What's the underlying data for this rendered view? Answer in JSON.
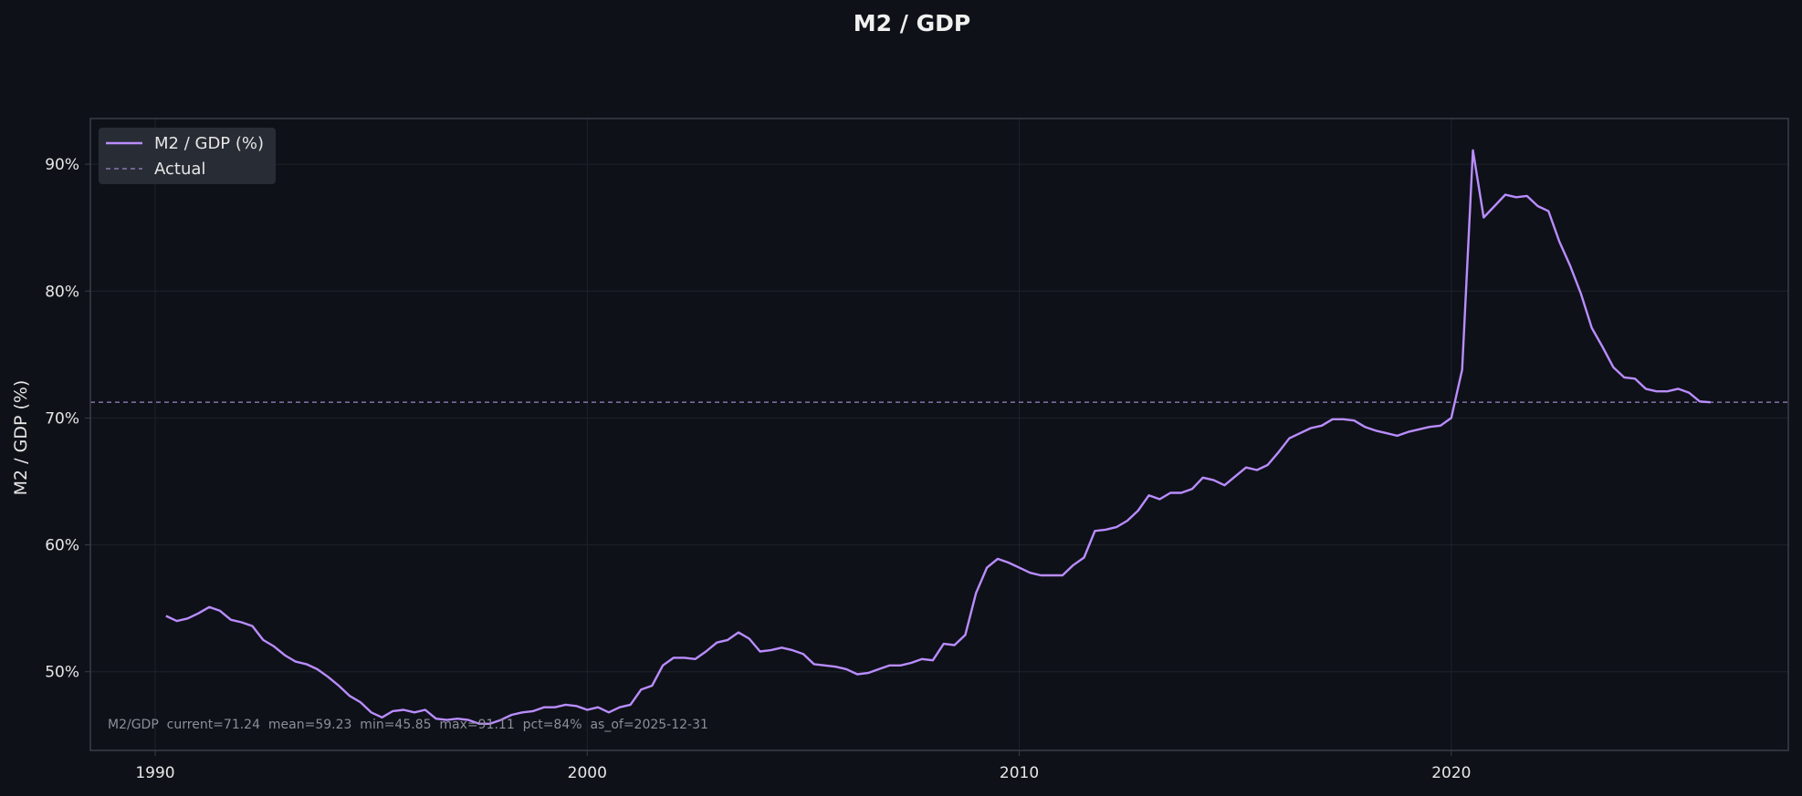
{
  "chart_data": {
    "type": "line",
    "title": "M2 / GDP",
    "xlabel": "",
    "ylabel": "M2 / GDP (%)",
    "xlim": [
      1988.5,
      2027.8
    ],
    "ylim": [
      43.8,
      93.6
    ],
    "x_ticks": [
      1990,
      2000,
      2010,
      2020
    ],
    "y_ticks": [
      50,
      60,
      70,
      80,
      90
    ],
    "y_tick_format": "{v}%",
    "grid": true,
    "legend": {
      "placement": "top-left",
      "entries": [
        {
          "label": "M2 / GDP (%)",
          "style": "solid"
        },
        {
          "label": "Actual",
          "style": "dashed"
        }
      ]
    },
    "hline": {
      "label": "Actual",
      "value": 71.24
    },
    "colors": {
      "background": "#0e1117",
      "line": "#b98cff",
      "hline": "#9a86c8",
      "grid": "#1e222b",
      "frame": "#3a3e46",
      "legend_bg": "#2a2f38"
    },
    "annotation": "M2/GDP  current=71.24  mean=59.23  min=45.85  max=91.11  pct=84%  as_of=2025-12-31",
    "series": [
      {
        "name": "M2 / GDP (%)",
        "x": [
          1990.25,
          1990.5,
          1990.75,
          1991.0,
          1991.25,
          1991.5,
          1991.75,
          1992.0,
          1992.25,
          1992.5,
          1992.75,
          1993.0,
          1993.25,
          1993.5,
          1993.75,
          1994.0,
          1994.25,
          1994.5,
          1994.75,
          1995.0,
          1995.25,
          1995.5,
          1995.75,
          1996.0,
          1996.25,
          1996.5,
          1996.75,
          1997.0,
          1997.25,
          1997.5,
          1997.75,
          1998.0,
          1998.25,
          1998.5,
          1998.75,
          1999.0,
          1999.25,
          1999.5,
          1999.75,
          2000.0,
          2000.25,
          2000.5,
          2000.75,
          2001.0,
          2001.25,
          2001.5,
          2001.75,
          2002.0,
          2002.25,
          2002.5,
          2002.75,
          2003.0,
          2003.25,
          2003.5,
          2003.75,
          2004.0,
          2004.25,
          2004.5,
          2004.75,
          2005.0,
          2005.25,
          2005.5,
          2005.75,
          2006.0,
          2006.25,
          2006.5,
          2006.75,
          2007.0,
          2007.25,
          2007.5,
          2007.75,
          2008.0,
          2008.25,
          2008.5,
          2008.75,
          2009.0,
          2009.25,
          2009.5,
          2009.75,
          2010.0,
          2010.25,
          2010.5,
          2010.75,
          2011.0,
          2011.25,
          2011.5,
          2011.75,
          2012.0,
          2012.25,
          2012.5,
          2012.75,
          2013.0,
          2013.25,
          2013.5,
          2013.75,
          2014.0,
          2014.25,
          2014.5,
          2014.75,
          2015.0,
          2015.25,
          2015.5,
          2015.75,
          2016.0,
          2016.25,
          2016.5,
          2016.75,
          2017.0,
          2017.25,
          2017.5,
          2017.75,
          2018.0,
          2018.25,
          2018.5,
          2018.75,
          2019.0,
          2019.25,
          2019.5,
          2019.75,
          2020.0,
          2020.25,
          2020.5,
          2020.75,
          2021.0,
          2021.25,
          2021.5,
          2021.75,
          2022.0,
          2022.25,
          2022.5,
          2022.75,
          2023.0,
          2023.25,
          2023.5,
          2023.75,
          2024.0,
          2024.25,
          2024.5,
          2024.75,
          2025.0,
          2025.25,
          2025.5,
          2025.75,
          2026.0
        ],
        "values": [
          54.4,
          54.0,
          54.2,
          54.6,
          55.1,
          54.8,
          54.1,
          53.9,
          53.6,
          52.5,
          52.0,
          51.3,
          50.8,
          50.6,
          50.2,
          49.6,
          48.9,
          48.1,
          47.6,
          46.8,
          46.4,
          46.9,
          47.0,
          46.8,
          47.0,
          46.3,
          46.2,
          46.3,
          46.2,
          45.9,
          45.9,
          46.2,
          46.6,
          46.8,
          46.9,
          47.2,
          47.2,
          47.4,
          47.3,
          47.0,
          47.2,
          46.8,
          47.2,
          47.4,
          48.6,
          48.9,
          50.5,
          51.1,
          51.1,
          51.0,
          51.6,
          52.3,
          52.5,
          53.1,
          52.6,
          51.6,
          51.7,
          51.9,
          51.7,
          51.4,
          50.6,
          50.5,
          50.4,
          50.2,
          49.8,
          49.9,
          50.2,
          50.5,
          50.5,
          50.7,
          51.0,
          50.9,
          52.2,
          52.1,
          52.9,
          56.2,
          58.2,
          58.9,
          58.6,
          58.2,
          57.8,
          57.6,
          57.6,
          57.6,
          58.4,
          59.0,
          61.1,
          61.2,
          61.4,
          61.9,
          62.7,
          63.9,
          63.6,
          64.1,
          64.1,
          64.4,
          65.3,
          65.1,
          64.7,
          65.4,
          66.1,
          65.9,
          66.3,
          67.3,
          68.4,
          68.8,
          69.2,
          69.4,
          69.9,
          69.9,
          69.8,
          69.3,
          69.0,
          68.8,
          68.6,
          68.9,
          69.1,
          69.3,
          69.4,
          70.0,
          73.8,
          91.1,
          85.8,
          86.7,
          87.6,
          87.4,
          87.5,
          86.7,
          86.3,
          83.9,
          82.0,
          79.8,
          77.1,
          75.6,
          74.0,
          73.2,
          73.1,
          72.3,
          72.1,
          72.1,
          72.3,
          72.0,
          71.3,
          71.24
        ]
      }
    ]
  }
}
